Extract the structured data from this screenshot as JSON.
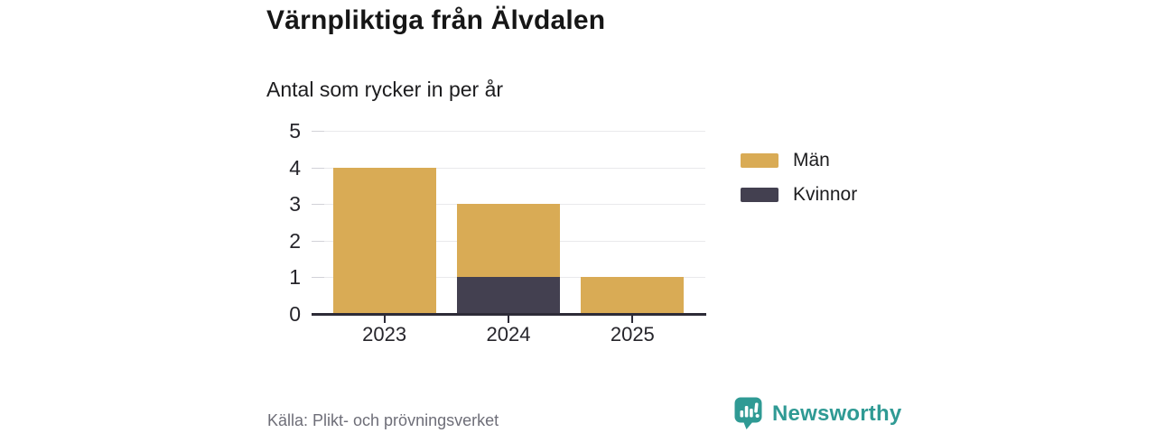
{
  "title": "Värnpliktiga från Älvdalen",
  "subtitle": "Antal som rycker in per år",
  "source": "Källa: Plikt- och prövningsverket",
  "branding": {
    "name": "Newsworthy",
    "color": "#2f9a94",
    "icon": "newsworthy-speech-bubble-bar-chart-logo"
  },
  "colors": {
    "men": "#d9ab55",
    "women": "#434050",
    "axis": "#2d2b37",
    "grid": "#e9e9ec",
    "muted_text": "#6e6e78",
    "text": "#1d1d1f"
  },
  "chart_data": {
    "type": "bar",
    "stacked": true,
    "title": "Värnpliktiga från Älvdalen",
    "subtitle": "Antal som rycker in per år",
    "categories": [
      "2023",
      "2024",
      "2025"
    ],
    "series": [
      {
        "name": "Kvinnor",
        "color": "#434050",
        "values": [
          0,
          1,
          0
        ]
      },
      {
        "name": "Män",
        "color": "#d9ab55",
        "values": [
          4,
          2,
          1
        ]
      }
    ],
    "totals": [
      4,
      3,
      1
    ],
    "legend": [
      {
        "label": "Män",
        "color": "#d9ab55"
      },
      {
        "label": "Kvinnor",
        "color": "#434050"
      }
    ],
    "legend_position": "right",
    "xlabel": "",
    "ylabel": "",
    "ylim": [
      0,
      5
    ],
    "yticks": [
      0,
      1,
      2,
      3,
      4,
      5
    ],
    "grid": true
  }
}
